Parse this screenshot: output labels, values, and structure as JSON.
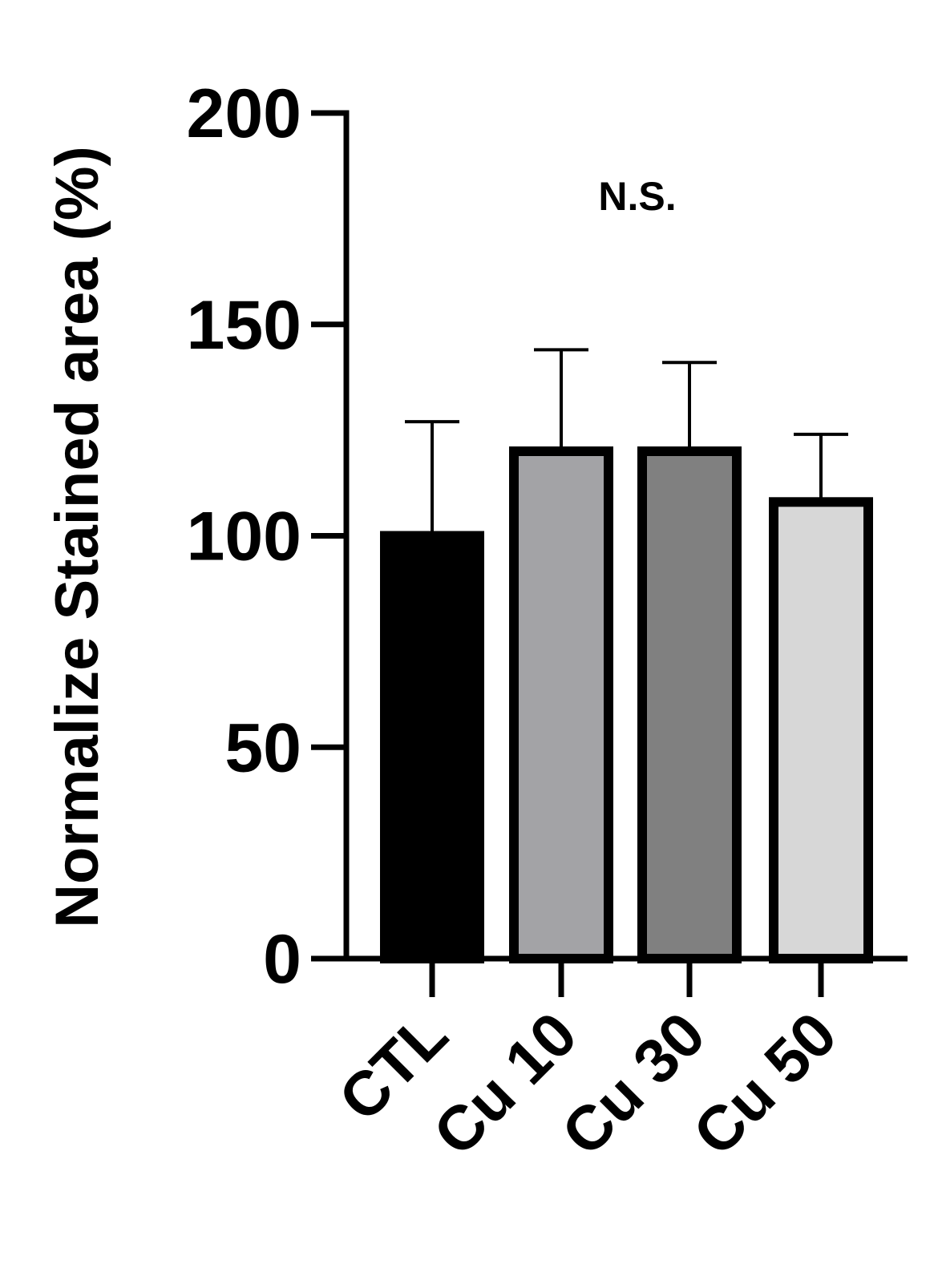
{
  "chart_data": {
    "type": "bar",
    "title": "",
    "xlabel": "",
    "ylabel": "Normalize Stained area (%)",
    "ylim": [
      0,
      200
    ],
    "yticks": [
      0,
      50,
      100,
      150,
      200
    ],
    "grid": false,
    "categories": [
      "CTL",
      "Cu 10",
      "Cu 30",
      "Cu 50"
    ],
    "values": [
      100,
      120,
      120,
      108
    ],
    "errors": [
      27,
      24,
      21,
      16
    ],
    "colors": [
      "#000000",
      "#a3a3a6",
      "#808080",
      "#d7d7d7"
    ],
    "annotation": "N.S."
  }
}
